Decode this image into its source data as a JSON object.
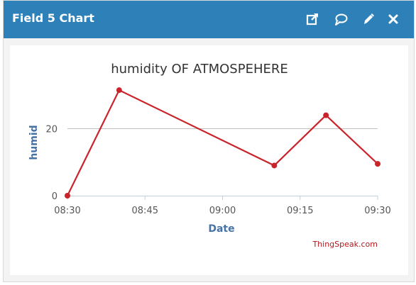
{
  "widget": {
    "title": "Field 5 Chart",
    "actions": [
      {
        "name": "open-external-icon",
        "label": "Open in new window"
      },
      {
        "name": "comment-icon",
        "label": "Comments"
      },
      {
        "name": "edit-icon",
        "label": "Edit"
      },
      {
        "name": "close-icon",
        "label": "Close"
      }
    ],
    "credit": "ThingSpeak.com"
  },
  "colors": {
    "header": "#2e80b8",
    "series": "#c9242b",
    "axis_label": "#4572a7",
    "credit": "#b0181e"
  },
  "chart_data": {
    "type": "line",
    "title": "humidity OF ATMOSPEHERE",
    "xlabel": "Date",
    "ylabel": "humid",
    "x": [
      "08:30",
      "08:40",
      "09:10",
      "09:20",
      "09:30"
    ],
    "series": [
      {
        "values": [
          0,
          31.5,
          9,
          24,
          9.5
        ]
      }
    ],
    "x_ticks": [
      "08:30",
      "08:45",
      "09:00",
      "09:15",
      "09:30"
    ],
    "y_ticks": [
      0,
      20
    ],
    "xlim": [
      "08:30",
      "09:30"
    ],
    "ylim": [
      0,
      40
    ],
    "grid": true,
    "legend": "none"
  }
}
